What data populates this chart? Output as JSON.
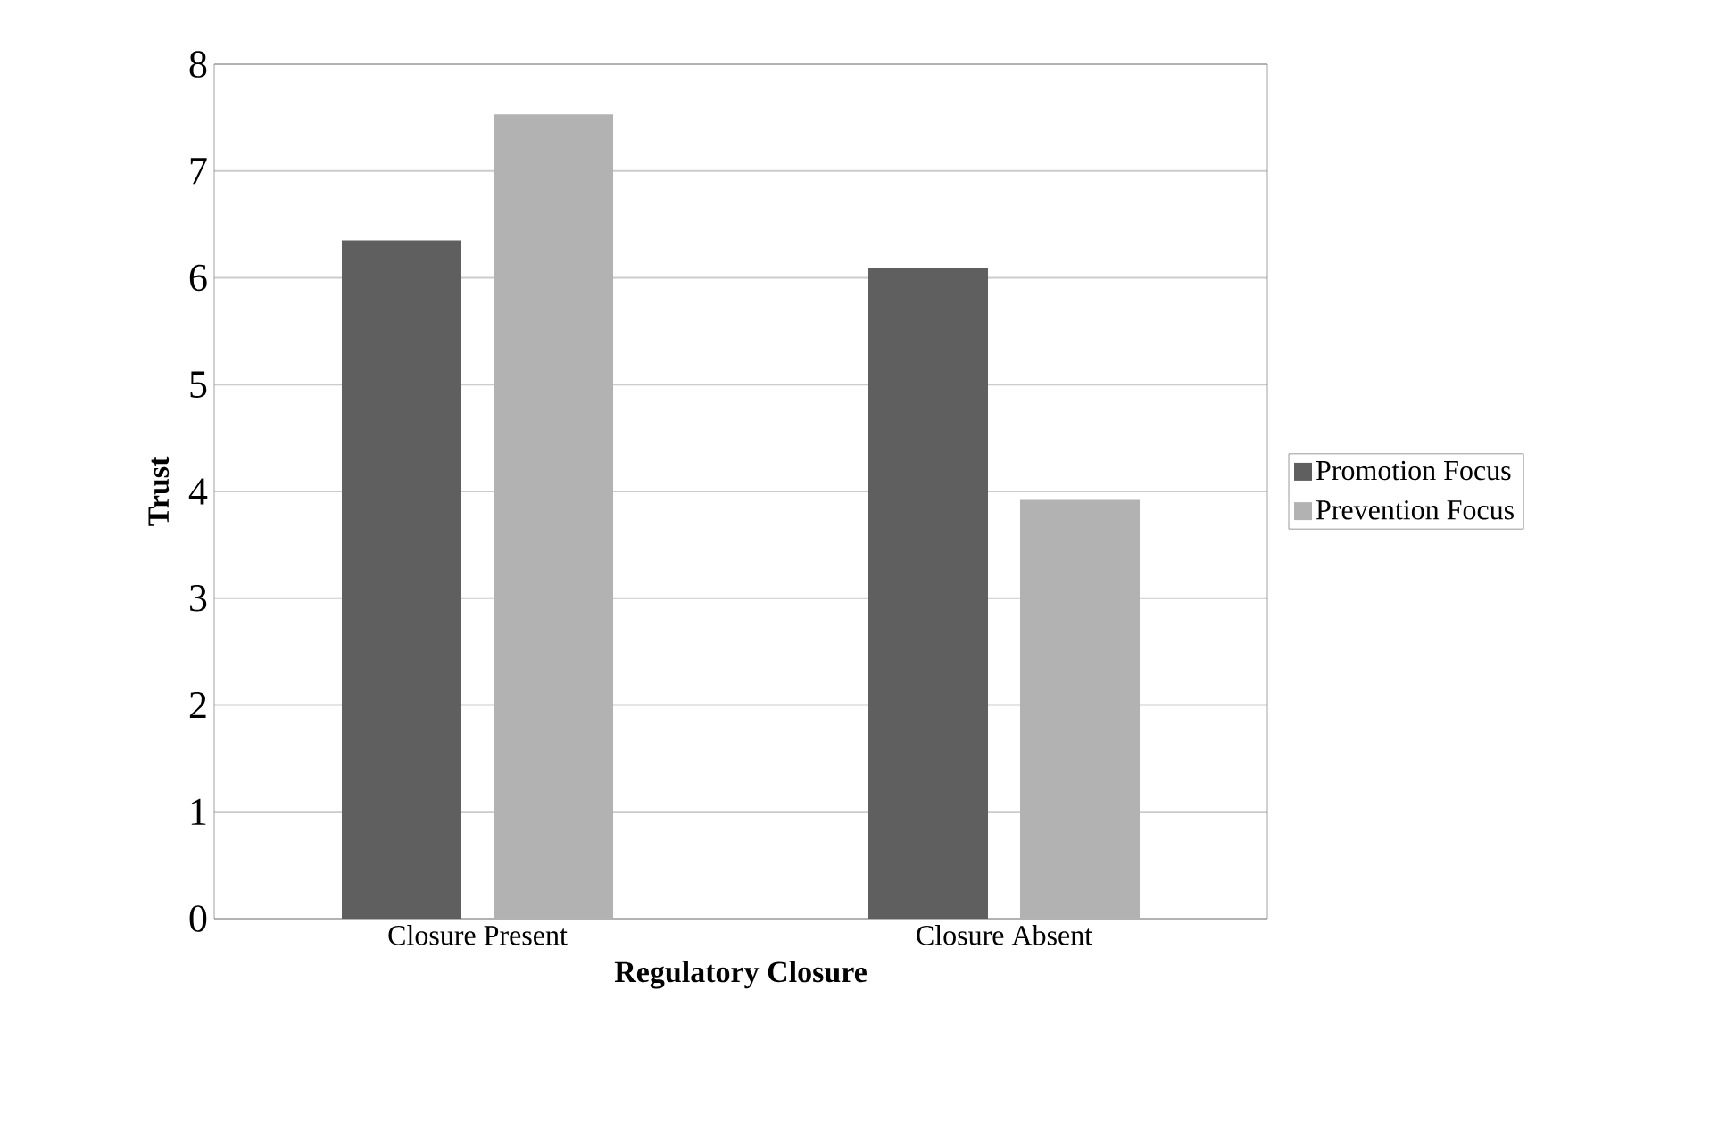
{
  "chart_data": {
    "type": "bar",
    "xlabel": "Regulatory Closure",
    "ylabel": "Trust",
    "categories": [
      "Closure Present",
      "Closure Absent"
    ],
    "series": [
      {
        "name": "Promotion Focus",
        "color": "#5f5f5f",
        "values": [
          6.35,
          6.09
        ]
      },
      {
        "name": "Prevention Focus",
        "color": "#b2b2b2",
        "values": [
          7.53,
          3.92
        ]
      }
    ],
    "ylim": [
      0,
      8
    ],
    "yticks": [
      0,
      1,
      2,
      3,
      4,
      5,
      6,
      7,
      8
    ],
    "grid": "y",
    "legend": "right"
  }
}
